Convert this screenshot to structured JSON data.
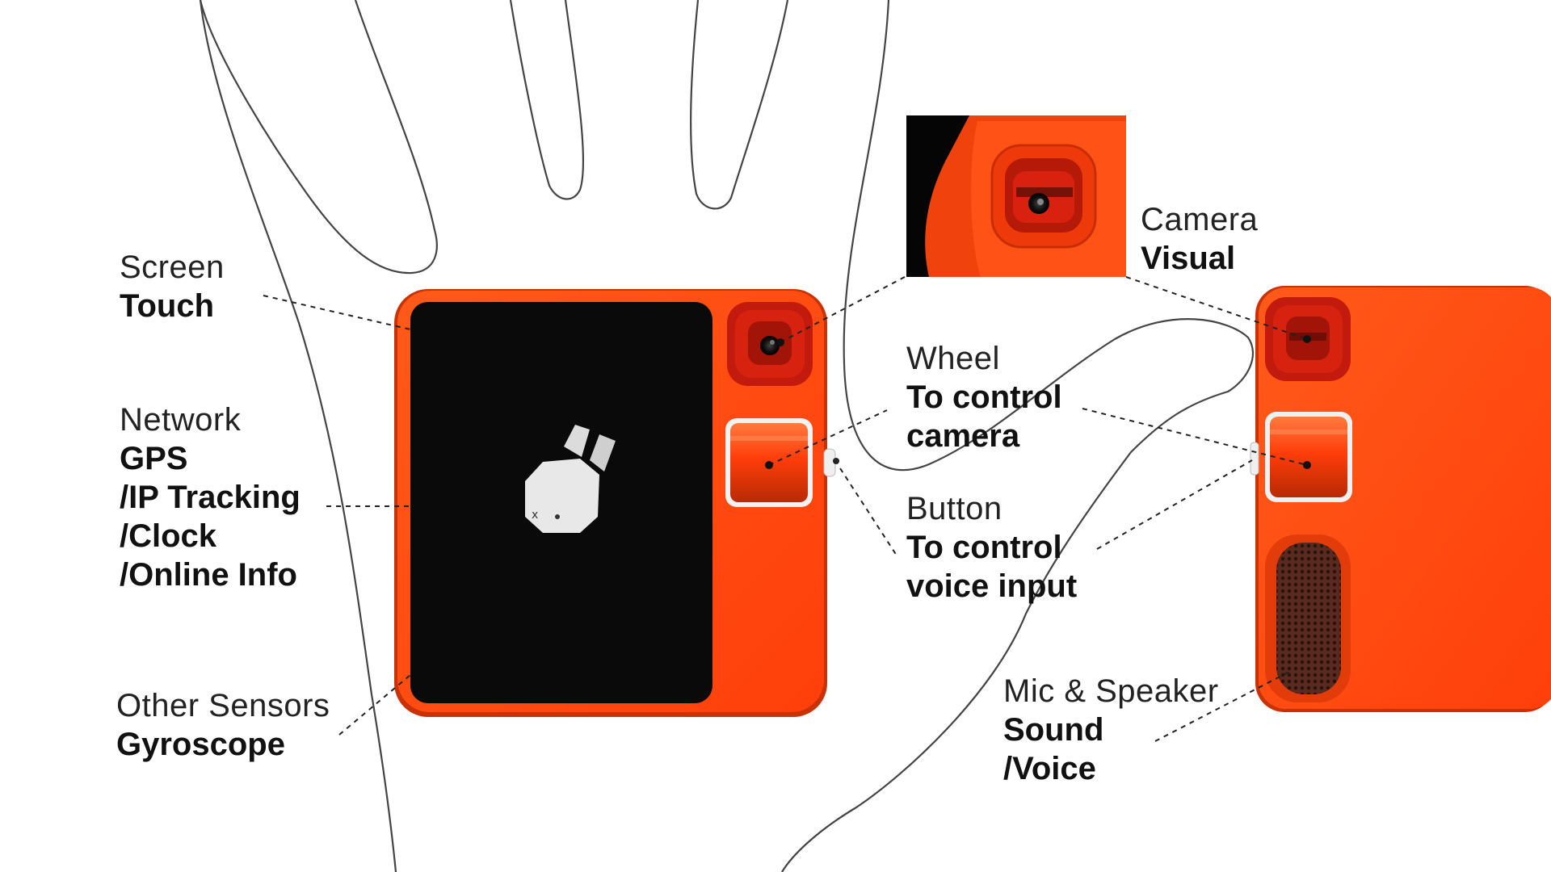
{
  "labels": {
    "screen": {
      "title": "Screen",
      "items": [
        "Touch"
      ]
    },
    "network": {
      "title": "Network",
      "items": [
        "GPS",
        "/IP Tracking",
        "/Clock",
        "/Online Info"
      ]
    },
    "other": {
      "title": "Other Sensors",
      "items": [
        "Gyroscope"
      ]
    },
    "camera": {
      "title": "Camera",
      "items": [
        "Visual"
      ]
    },
    "wheel": {
      "title": "Wheel",
      "items": [
        "To control",
        "camera"
      ]
    },
    "button": {
      "title": "Button",
      "items": [
        "To control",
        "voice input"
      ]
    },
    "mic": {
      "title": "Mic & Speaker",
      "items": [
        "Sound",
        "/Voice"
      ]
    }
  },
  "colors": {
    "device_orange": "#ff4a0f",
    "device_orange_dark": "#d83208",
    "camera_red": "#d81e10",
    "screen": "#0a0a0a",
    "hand_outline": "#444444",
    "leader_line": "#222222"
  }
}
